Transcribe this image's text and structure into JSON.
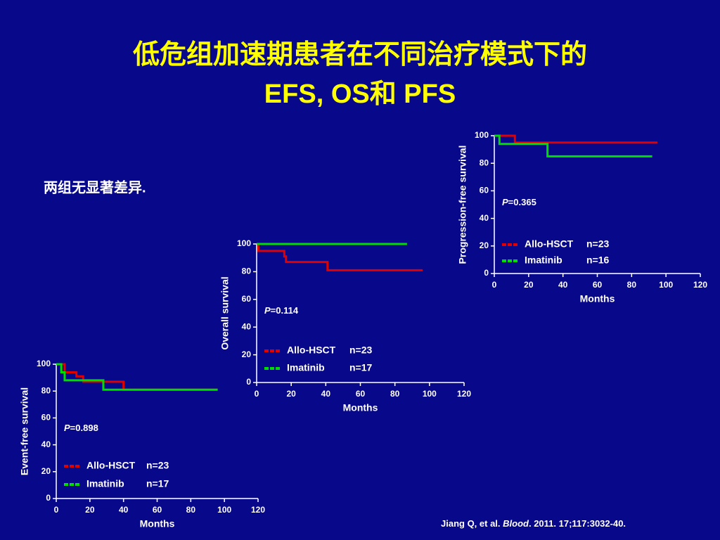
{
  "slide": {
    "title_line1": "低危组加速期患者在不同治疗模式下的",
    "title_line2": "EFS, OS和 PFS",
    "note": "两组无显著差异.",
    "citation_pre": "Jiang Q, et al. ",
    "citation_journal": "Blood",
    "citation_post": ". 2011. 17;117:3032-40."
  },
  "chart_data": [
    {
      "type": "step",
      "ylabel": "Event-free survival",
      "xlabel": "Months",
      "xlim": [
        0,
        120
      ],
      "ylim": [
        0,
        100
      ],
      "xticks": [
        0,
        20,
        40,
        60,
        80,
        100,
        120
      ],
      "yticks": [
        0,
        20,
        40,
        60,
        80,
        100
      ],
      "p_symbol": "P",
      "p_text": "=0.898",
      "series": [
        {
          "name": "Allo-HSCT",
          "n_label": "n=23",
          "color": "#e00000",
          "x": [
            0,
            5,
            12,
            16,
            40,
            96
          ],
          "values": [
            100,
            94,
            91,
            87,
            81,
            81
          ]
        },
        {
          "name": "Imatinib",
          "n_label": "n=17",
          "color": "#00dd00",
          "x": [
            0,
            3,
            5,
            28,
            96
          ],
          "values": [
            100,
            94,
            88,
            81,
            81
          ]
        }
      ]
    },
    {
      "type": "step",
      "ylabel": "Overall survival",
      "xlabel": "Months",
      "xlim": [
        0,
        120
      ],
      "ylim": [
        0,
        100
      ],
      "xticks": [
        0,
        20,
        40,
        60,
        80,
        100,
        120
      ],
      "yticks": [
        0,
        20,
        40,
        60,
        80,
        100
      ],
      "p_symbol": "P",
      "p_text": "=0.114",
      "series": [
        {
          "name": "Allo-HSCT",
          "n_label": "n=23",
          "color": "#e00000",
          "x": [
            0,
            1,
            16,
            17,
            41,
            96
          ],
          "values": [
            100,
            95,
            91,
            87,
            81,
            81
          ]
        },
        {
          "name": "Imatinib",
          "n_label": "n=17",
          "color": "#00dd00",
          "x": [
            0,
            87
          ],
          "values": [
            100,
            100
          ]
        }
      ]
    },
    {
      "type": "step",
      "ylabel": "Progression-free survival",
      "xlabel": "Months",
      "xlim": [
        0,
        120
      ],
      "ylim": [
        0,
        100
      ],
      "xticks": [
        0,
        20,
        40,
        60,
        80,
        100,
        120
      ],
      "yticks": [
        0,
        20,
        40,
        60,
        80,
        100
      ],
      "p_symbol": "P",
      "p_text": "=0.365",
      "series": [
        {
          "name": "Allo-HSCT",
          "n_label": "n=23",
          "color": "#e00000",
          "x": [
            0,
            12,
            95
          ],
          "values": [
            100,
            95,
            95
          ]
        },
        {
          "name": "Imatinib",
          "n_label": "n=16",
          "color": "#00dd00",
          "x": [
            0,
            3,
            31,
            92
          ],
          "values": [
            100,
            94,
            85,
            85
          ]
        }
      ]
    }
  ]
}
